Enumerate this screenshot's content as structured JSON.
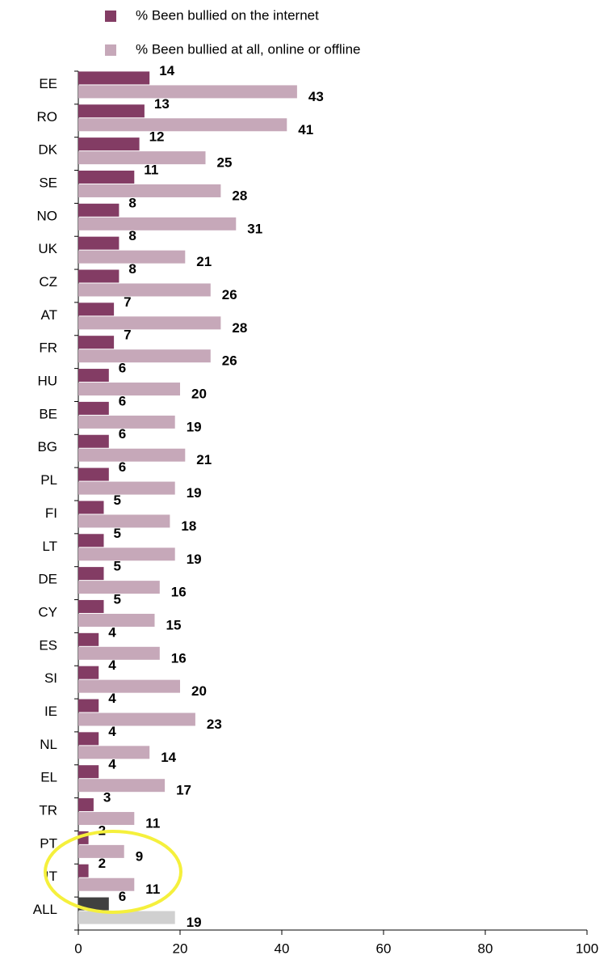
{
  "chart_data": {
    "type": "hbar",
    "categories": [
      "EE",
      "RO",
      "DK",
      "SE",
      "NO",
      "UK",
      "CZ",
      "AT",
      "FR",
      "HU",
      "BE",
      "BG",
      "PL",
      "FI",
      "LT",
      "DE",
      "CY",
      "ES",
      "SI",
      "IE",
      "NL",
      "EL",
      "TR",
      "PT",
      "IT",
      "ALL"
    ],
    "series": [
      {
        "name": "% Been bullied on the internet",
        "color": "#833c64",
        "colors": [
          "#833c64",
          "#833c64",
          "#833c64",
          "#833c64",
          "#833c64",
          "#833c64",
          "#833c64",
          "#833c64",
          "#833c64",
          "#833c64",
          "#833c64",
          "#833c64",
          "#833c64",
          "#833c64",
          "#833c64",
          "#833c64",
          "#833c64",
          "#833c64",
          "#833c64",
          "#833c64",
          "#833c64",
          "#833c64",
          "#833c64",
          "#833c64",
          "#833c64",
          "#404040"
        ],
        "values": [
          14,
          13,
          12,
          11,
          8,
          8,
          8,
          7,
          7,
          6,
          6,
          6,
          6,
          5,
          5,
          5,
          5,
          4,
          4,
          4,
          4,
          4,
          3,
          2,
          2,
          6
        ]
      },
      {
        "name": "% Been bullied at all, online or offline",
        "color": "#c6a8b9",
        "colors": [
          "#c6a8b9",
          "#c6a8b9",
          "#c6a8b9",
          "#c6a8b9",
          "#c6a8b9",
          "#c6a8b9",
          "#c6a8b9",
          "#c6a8b9",
          "#c6a8b9",
          "#c6a8b9",
          "#c6a8b9",
          "#c6a8b9",
          "#c6a8b9",
          "#c6a8b9",
          "#c6a8b9",
          "#c6a8b9",
          "#c6a8b9",
          "#c6a8b9",
          "#c6a8b9",
          "#c6a8b9",
          "#c6a8b9",
          "#c6a8b9",
          "#c6a8b9",
          "#c6a8b9",
          "#c6a8b9",
          "#d0d0d0"
        ],
        "values": [
          43,
          41,
          25,
          28,
          31,
          21,
          26,
          28,
          26,
          20,
          19,
          21,
          19,
          18,
          19,
          16,
          15,
          16,
          20,
          23,
          14,
          17,
          11,
          9,
          11,
          19
        ]
      }
    ],
    "xlim": [
      0,
      100
    ],
    "xticks": [
      0,
      20,
      40,
      60,
      80,
      100
    ],
    "legend": "top"
  }
}
